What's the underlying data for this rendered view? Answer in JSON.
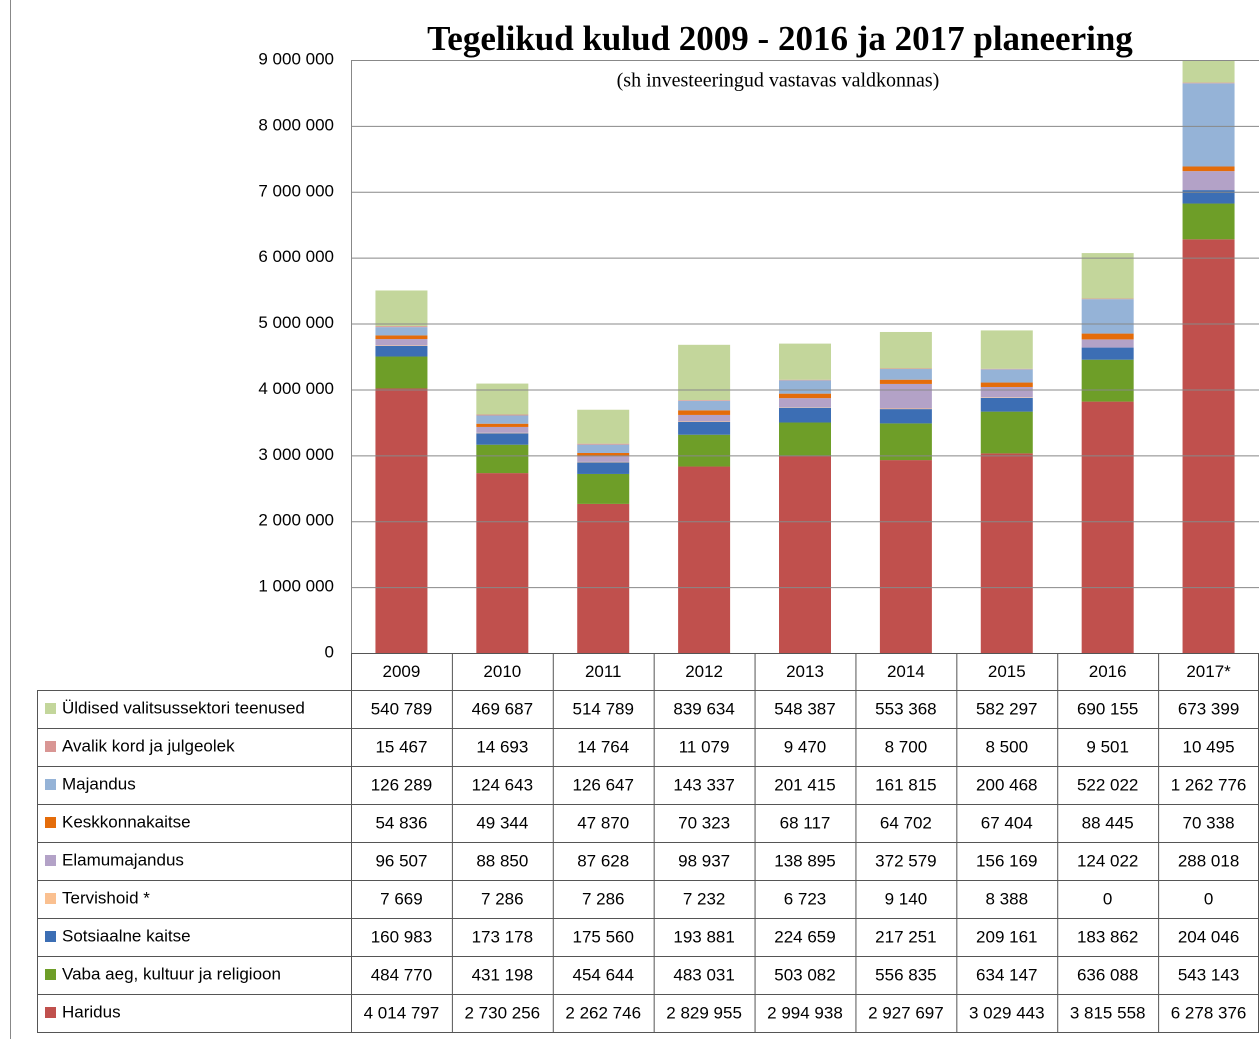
{
  "chart_data": {
    "type": "bar",
    "stacked": true,
    "title": "Tegelikud kulud 2009 - 2016 ja 2017 planeering",
    "subtitle": "(sh investeeringud vastavas valdkonnas)",
    "categories": [
      "2009",
      "2010",
      "2011",
      "2012",
      "2013",
      "2014",
      "2015",
      "2016",
      "2017*"
    ],
    "ylim": [
      0,
      9000000
    ],
    "yticks": [
      0,
      {
        "value": 1000000,
        "label": "1 000 000"
      },
      {
        "value": 2000000,
        "label": "2 000 000"
      },
      {
        "value": 3000000,
        "label": "3 000 000"
      },
      {
        "value": 4000000,
        "label": "4 000 000"
      },
      {
        "value": 5000000,
        "label": "5 000 000"
      },
      {
        "value": 6000000,
        "label": "6 000 000"
      },
      {
        "value": 7000000,
        "label": "7 000 000"
      },
      {
        "value": 8000000,
        "label": "8 000 000"
      },
      {
        "value": 9000000,
        "label": "9 000 000"
      }
    ],
    "grid": true,
    "series": [
      {
        "name": "Üldised valitsussektori teenused",
        "color": "#c3d69b",
        "values": [
          540789,
          469687,
          514789,
          839634,
          548387,
          553368,
          582297,
          690155,
          673399
        ],
        "value_labels": [
          "540 789",
          "469 687",
          "514 789",
          "839 634",
          "548 387",
          "553 368",
          "582 297",
          "690 155",
          "673 399"
        ]
      },
      {
        "name": "Avalik kord ja julgeolek",
        "color": "#d99694",
        "values": [
          15467,
          14693,
          14764,
          11079,
          9470,
          8700,
          8500,
          9501,
          10495
        ],
        "value_labels": [
          "15 467",
          "14 693",
          "14 764",
          "11 079",
          "9 470",
          "8 700",
          "8 500",
          "9 501",
          "10 495"
        ]
      },
      {
        "name": "Majandus",
        "color": "#95b3d7",
        "values": [
          126289,
          124643,
          126647,
          143337,
          201415,
          161815,
          200468,
          522022,
          1262776
        ],
        "value_labels": [
          "126 289",
          "124 643",
          "126 647",
          "143 337",
          "201 415",
          "161 815",
          "200 468",
          "522 022",
          "1 262 776"
        ]
      },
      {
        "name": "Keskkonnakaitse",
        "color": "#e46c0a",
        "values": [
          54836,
          49344,
          47870,
          70323,
          68117,
          64702,
          67404,
          88445,
          70338
        ],
        "value_labels": [
          "54 836",
          "49 344",
          "47 870",
          "70 323",
          "68 117",
          "64 702",
          "67 404",
          "88 445",
          "70 338"
        ]
      },
      {
        "name": "Elamumajandus",
        "color": "#b3a2c7",
        "values": [
          96507,
          88850,
          87628,
          98937,
          138895,
          372579,
          156169,
          124022,
          288018
        ],
        "value_labels": [
          "96 507",
          "88 850",
          "87 628",
          "98 937",
          "138 895",
          "372 579",
          "156 169",
          "124 022",
          "288 018"
        ]
      },
      {
        "name": "Tervishoid *",
        "color": "#fac090",
        "values": [
          7669,
          7286,
          7286,
          7232,
          6723,
          9140,
          8388,
          0,
          0
        ],
        "value_labels": [
          "7 669",
          "7 286",
          "7 286",
          "7 232",
          "6 723",
          "9 140",
          "8 388",
          "0",
          "0"
        ]
      },
      {
        "name": "Sotsiaalne kaitse",
        "color": "#3c6eb4",
        "values": [
          160983,
          173178,
          175560,
          193881,
          224659,
          217251,
          209161,
          183862,
          204046
        ],
        "value_labels": [
          "160 983",
          "173 178",
          "175 560",
          "193 881",
          "224 659",
          "217 251",
          "209 161",
          "183 862",
          "204 046"
        ]
      },
      {
        "name": "Vaba aeg, kultuur ja religioon",
        "color": "#6e9e28",
        "values": [
          484770,
          431198,
          454644,
          483031,
          503082,
          556835,
          634147,
          636088,
          543143
        ],
        "value_labels": [
          "484 770",
          "431 198",
          "454 644",
          "483 031",
          "503 082",
          "556 835",
          "634 147",
          "636 088",
          "543 143"
        ]
      },
      {
        "name": "Haridus",
        "color": "#c0504d",
        "values": [
          4014797,
          2730256,
          2262746,
          2829955,
          2994938,
          2927697,
          3029443,
          3815558,
          6278376
        ],
        "value_labels": [
          "4 014 797",
          "2 730 256",
          "2 262 746",
          "2 829 955",
          "2 994 938",
          "2 927 697",
          "3 029 443",
          "3 815 558",
          "6 278 376"
        ]
      }
    ]
  }
}
